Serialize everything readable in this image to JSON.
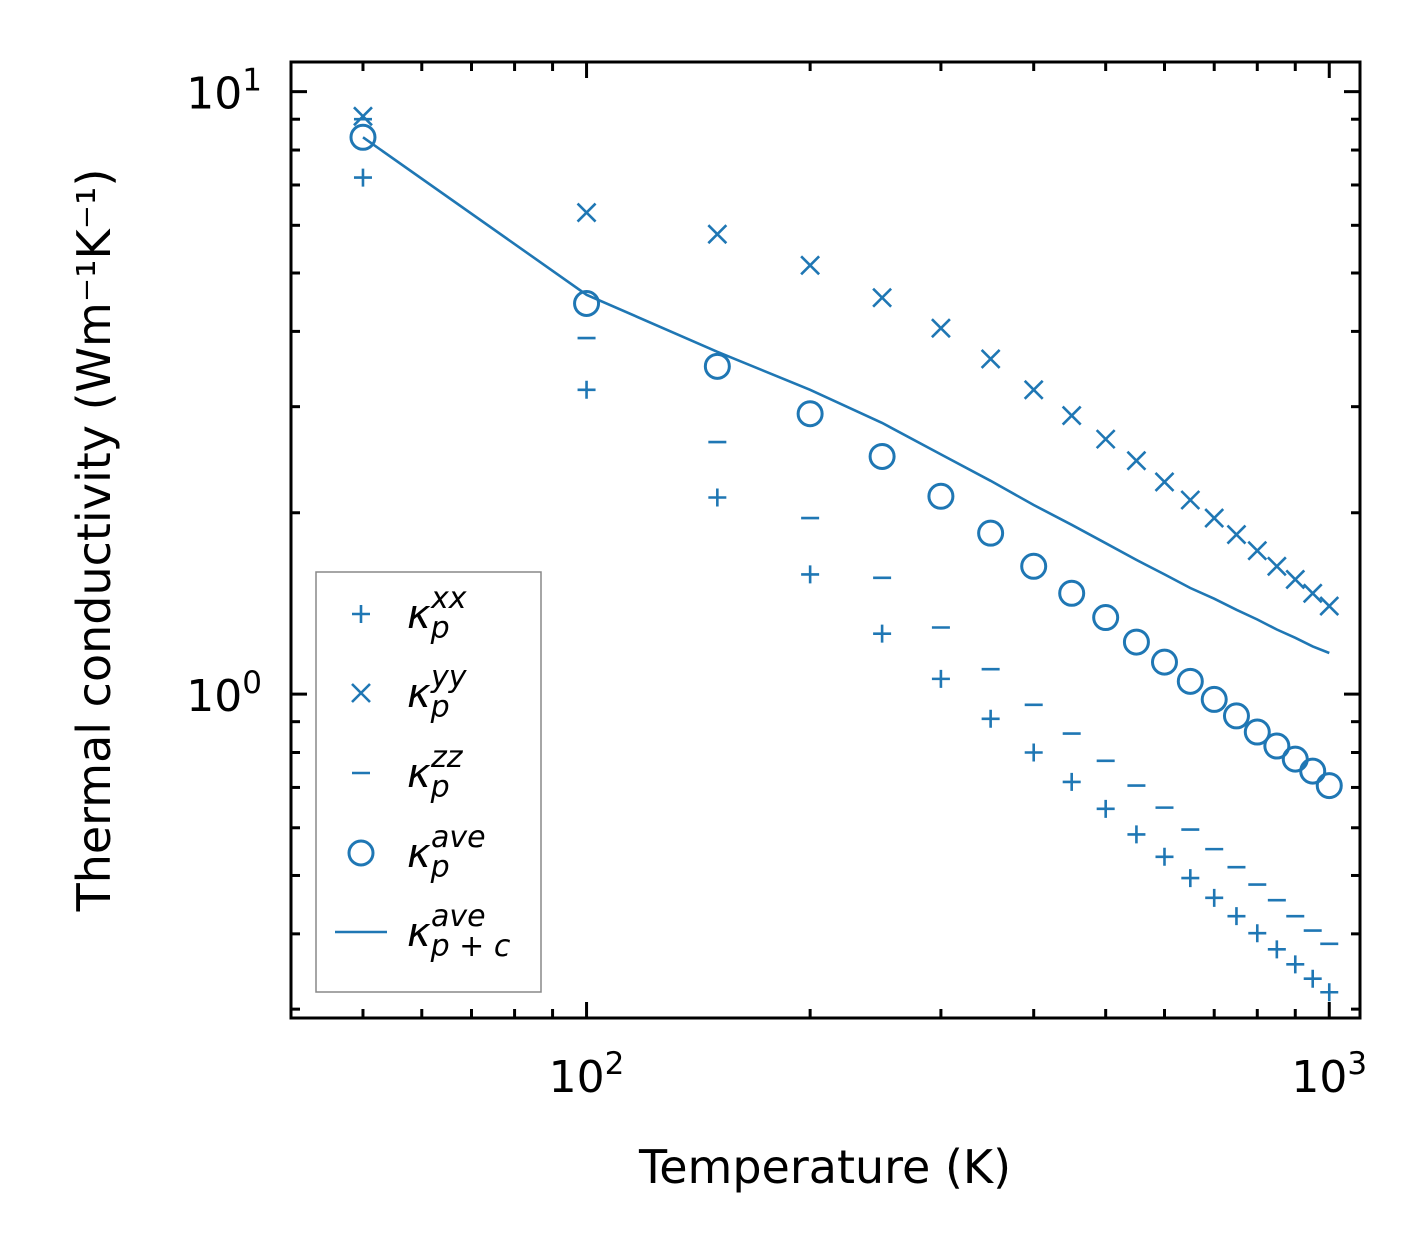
{
  "chart_data": {
    "type": "scatter",
    "xscale": "log",
    "yscale": "log",
    "xlim": [
      40,
      1100
    ],
    "ylim": [
      0.29,
      11.2
    ],
    "xlabel": "Temperature (K)",
    "ylabel": "Thermal conductivity (Wm⁻¹K⁻¹)",
    "x_ticks": [
      {
        "value": 100,
        "base": "10",
        "exp": "2"
      },
      {
        "value": 1000,
        "base": "10",
        "exp": "3"
      }
    ],
    "y_ticks": [
      {
        "value": 1,
        "base": "10",
        "exp": "0"
      },
      {
        "value": 10,
        "base": "10",
        "exp": "1"
      }
    ],
    "legend_position": "lower-left",
    "color": "#1f77b4",
    "x": [
      50,
      100,
      150,
      200,
      250,
      300,
      350,
      400,
      450,
      500,
      550,
      600,
      650,
      700,
      750,
      800,
      850,
      900,
      950,
      1000
    ],
    "series": [
      {
        "name": "kxx",
        "symbol": "κ",
        "sub": "p",
        "sup": "xx",
        "marker": "plus",
        "values": [
          7.2,
          3.2,
          2.12,
          1.58,
          1.26,
          1.06,
          0.91,
          0.8,
          0.715,
          0.645,
          0.585,
          0.537,
          0.495,
          0.459,
          0.428,
          0.401,
          0.377,
          0.356,
          0.337,
          0.32
        ]
      },
      {
        "name": "kyy",
        "symbol": "κ",
        "sub": "p",
        "sup": "yy",
        "marker": "x",
        "values": [
          9.1,
          6.3,
          5.8,
          5.15,
          4.55,
          4.05,
          3.6,
          3.2,
          2.9,
          2.65,
          2.44,
          2.25,
          2.1,
          1.96,
          1.84,
          1.73,
          1.63,
          1.55,
          1.47,
          1.4
        ]
      },
      {
        "name": "kzz",
        "symbol": "κ",
        "sub": "p",
        "sup": "zz",
        "marker": "hline",
        "values": [
          9.0,
          3.9,
          2.62,
          1.96,
          1.56,
          1.29,
          1.1,
          0.96,
          0.86,
          0.775,
          0.705,
          0.648,
          0.596,
          0.553,
          0.516,
          0.483,
          0.455,
          0.428,
          0.405,
          0.385
        ]
      },
      {
        "name": "kave",
        "symbol": "κ",
        "sub": "p",
        "sup": "ave",
        "marker": "circle",
        "values": [
          8.4,
          4.45,
          3.5,
          2.92,
          2.48,
          2.13,
          1.85,
          1.63,
          1.47,
          1.34,
          1.22,
          1.13,
          1.05,
          0.98,
          0.92,
          0.865,
          0.82,
          0.78,
          0.745,
          0.705
        ]
      },
      {
        "name": "kpc",
        "symbol": "κ",
        "sub": "p + c",
        "sup": "ave",
        "marker": "line",
        "values": [
          8.4,
          4.6,
          3.7,
          3.2,
          2.82,
          2.5,
          2.26,
          2.06,
          1.91,
          1.78,
          1.67,
          1.58,
          1.5,
          1.44,
          1.38,
          1.33,
          1.28,
          1.24,
          1.2,
          1.17
        ]
      }
    ]
  }
}
